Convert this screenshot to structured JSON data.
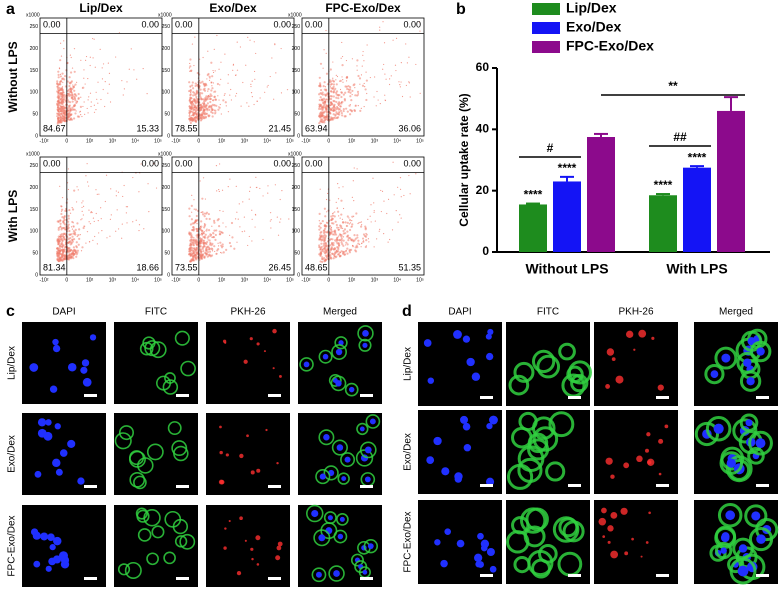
{
  "panel_labels": [
    "a",
    "b",
    "c",
    "d"
  ],
  "flow": {
    "columns": [
      "Lip/Dex",
      "Exo/Dex",
      "FPC-Exo/Dex"
    ],
    "rows": [
      "Without  LPS",
      "With  LPS"
    ],
    "y_unit": "x1000",
    "y_ticks": [
      "0",
      "50",
      "100",
      "150",
      "200",
      "250"
    ],
    "x_ticks": [
      "-10²",
      "0",
      "10²",
      "10³",
      "10⁴",
      "10⁵"
    ],
    "plots": [
      {
        "quadrants": [
          "0.00",
          "0.00",
          "84.67",
          "15.33"
        ]
      },
      {
        "quadrants": [
          "0.00",
          "0.00",
          "78.55",
          "21.45"
        ]
      },
      {
        "quadrants": [
          "0.00",
          "0.00",
          "63.94",
          "36.06"
        ]
      },
      {
        "quadrants": [
          "0.00",
          "0.00",
          "81.34",
          "18.66"
        ]
      },
      {
        "quadrants": [
          "0.00",
          "0.00",
          "73.55",
          "26.45"
        ]
      },
      {
        "quadrants": [
          "0.00",
          "0.00",
          "48.65",
          "51.35"
        ]
      }
    ]
  },
  "chart_data": {
    "type": "bar",
    "y_label": "Cellular uptake rate (%)",
    "categories": [
      "Without LPS",
      "With LPS"
    ],
    "series": [
      {
        "name": "Lip/Dex",
        "color": "#1e8c1e",
        "values": [
          15.5,
          18.5
        ],
        "errors": [
          0.3,
          0.4
        ]
      },
      {
        "name": "Exo/Dex",
        "color": "#1414f5",
        "values": [
          23,
          27.5
        ],
        "errors": [
          1.5,
          0.5
        ]
      },
      {
        "name": "FPC-Exo/Dex",
        "color": "#8c0a8c",
        "values": [
          37.5,
          46
        ],
        "errors": [
          1,
          4.5
        ]
      }
    ],
    "ylim": [
      0,
      60
    ],
    "yticks": [
      0,
      20,
      40,
      60
    ],
    "annotations": [
      "****",
      "****",
      "****",
      "****",
      "#",
      "##",
      "**"
    ]
  },
  "microscopy": [
    {
      "columns": [
        "DAPI",
        "FITC",
        "PKH-26",
        "Merged"
      ],
      "rows": [
        "Lip/Dex",
        "Exo/Dex",
        "FPC-Exo/Dex"
      ]
    },
    {
      "columns": [
        "DAPI",
        "FITC",
        "PKH-26",
        "Merged"
      ],
      "rows": [
        "Lip/Dex",
        "Exo/Dex",
        "FPC-Exo/Dex"
      ]
    }
  ]
}
